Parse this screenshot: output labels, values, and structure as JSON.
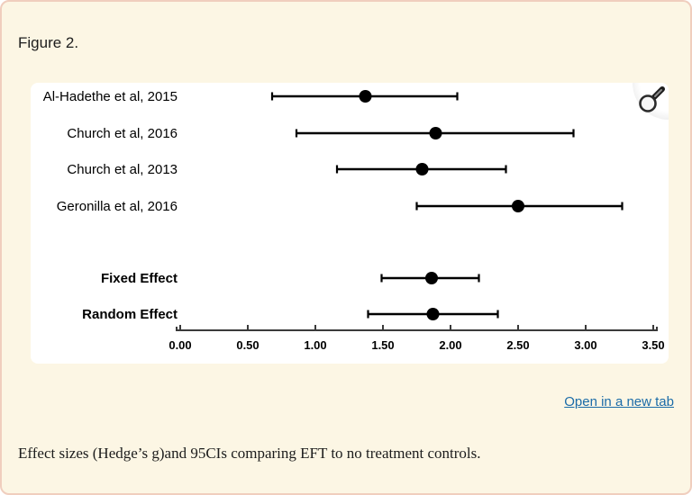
{
  "page": {
    "figure_label": "Figure 2.",
    "open_link": "Open in a new tab",
    "caption": "Effect sizes (Hedge’s g)and 95CIs comparing EFT to no treatment controls.",
    "colors": {
      "page_bg": "#FCF6E4",
      "page_border": "#F0CEBE",
      "panel_bg": "#FFFFFF",
      "link": "#1B6CA8",
      "text": "#1D1D1D",
      "plot_ink": "#000000",
      "axis": "#3A3A3A"
    },
    "icons": {
      "zoom_button": "magnifier-icon"
    }
  },
  "chart_data": {
    "type": "forest",
    "title": "",
    "xlabel": "",
    "xlim": [
      0,
      3.5
    ],
    "x_ticks": [
      0.0,
      0.5,
      1.0,
      1.5,
      2.0,
      2.5,
      3.0,
      3.5
    ],
    "x_tick_labels": [
      "0.00",
      "0.50",
      "1.00",
      "1.50",
      "2.00",
      "2.50",
      "3.00",
      "3.50"
    ],
    "grid": false,
    "legend": "none",
    "rows": [
      {
        "label": "Al-Hadethe et al, 2015",
        "estimate": 1.37,
        "ci_low": 0.68,
        "ci_high": 2.05,
        "bold": false
      },
      {
        "label": "Church et al, 2016",
        "estimate": 1.89,
        "ci_low": 0.86,
        "ci_high": 2.91,
        "bold": false
      },
      {
        "label": "Church et al, 2013",
        "estimate": 1.79,
        "ci_low": 1.16,
        "ci_high": 2.41,
        "bold": false
      },
      {
        "label": "Geronilla et al, 2016",
        "estimate": 2.5,
        "ci_low": 1.75,
        "ci_high": 3.27,
        "bold": false
      },
      {
        "label": "Fixed Effect",
        "estimate": 1.86,
        "ci_low": 1.49,
        "ci_high": 2.21,
        "bold": true
      },
      {
        "label": "Random Effect",
        "estimate": 1.87,
        "ci_low": 1.39,
        "ci_high": 2.35,
        "bold": true
      }
    ]
  }
}
